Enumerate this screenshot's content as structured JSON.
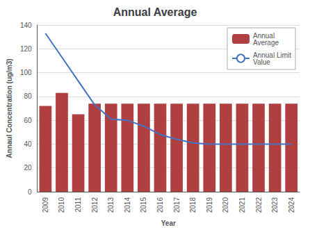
{
  "chart_data": {
    "type": "bar",
    "title": "Annual Average",
    "xlabel": "Year",
    "ylabel": "Annaul Concentration (ug/m3)",
    "categories": [
      "2009",
      "2010",
      "2011",
      "2012",
      "2013",
      "2014",
      "2015",
      "2016",
      "2017",
      "2018",
      "2019",
      "2020",
      "2021",
      "2022",
      "2023",
      "2024"
    ],
    "series": [
      {
        "name": "Annual\nAverage",
        "type": "bar",
        "color": "#B04040",
        "values": [
          72,
          83,
          65,
          74,
          74,
          74,
          74,
          74,
          74,
          74,
          74,
          74,
          74,
          74,
          74,
          74
        ]
      },
      {
        "name": "Annual Limit\nValue",
        "type": "line",
        "color": "#4472C4",
        "values": [
          133,
          113,
          93,
          73,
          61,
          60,
          55,
          48,
          44,
          41,
          40,
          40,
          40,
          40,
          40,
          40
        ]
      }
    ],
    "ylim": [
      0,
      140
    ],
    "yticks": [
      0,
      20,
      40,
      60,
      80,
      100,
      120,
      140
    ],
    "grid": true,
    "legend": "upper right"
  }
}
